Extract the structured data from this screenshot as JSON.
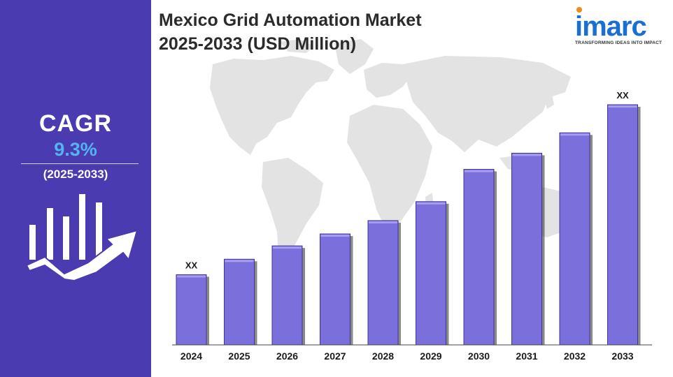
{
  "sidebar": {
    "cagr_label": "CAGR",
    "cagr_value": "9.3%",
    "cagr_period": "(2025-2033)",
    "icon": "growth-chart-arrow-icon"
  },
  "header": {
    "title_line1": "Mexico Grid Automation Market",
    "title_line2": "2025-2033 (USD Million)"
  },
  "logo": {
    "name": "imarc",
    "tagline": "TRANSFORMING IDEAS INTO IMPACT"
  },
  "colors": {
    "sidebar_bg": "#4a3bb0",
    "cagr_value": "#52b4f0",
    "bar_fill": "#7b6fdc",
    "bar_top": "#a79df0",
    "map": "#e2e2e2",
    "logo_blue": "#1a6fd1",
    "logo_orange": "#f08a1c"
  },
  "chart_data": {
    "type": "bar",
    "title": "Mexico Grid Automation Market 2025-2033 (USD Million)",
    "categories": [
      "2024",
      "2025",
      "2026",
      "2027",
      "2028",
      "2029",
      "2030",
      "2031",
      "2032",
      "2033"
    ],
    "values": [
      100,
      122,
      141,
      158,
      177,
      204,
      250,
      273,
      302,
      342
    ],
    "value_note": "relative bar heights; actual values not shown",
    "data_labels": {
      "2024": "XX",
      "2033": "XX"
    },
    "xlabel": "",
    "ylabel": "",
    "ylim": [
      0,
      342
    ],
    "grid": false,
    "legend": "none"
  }
}
